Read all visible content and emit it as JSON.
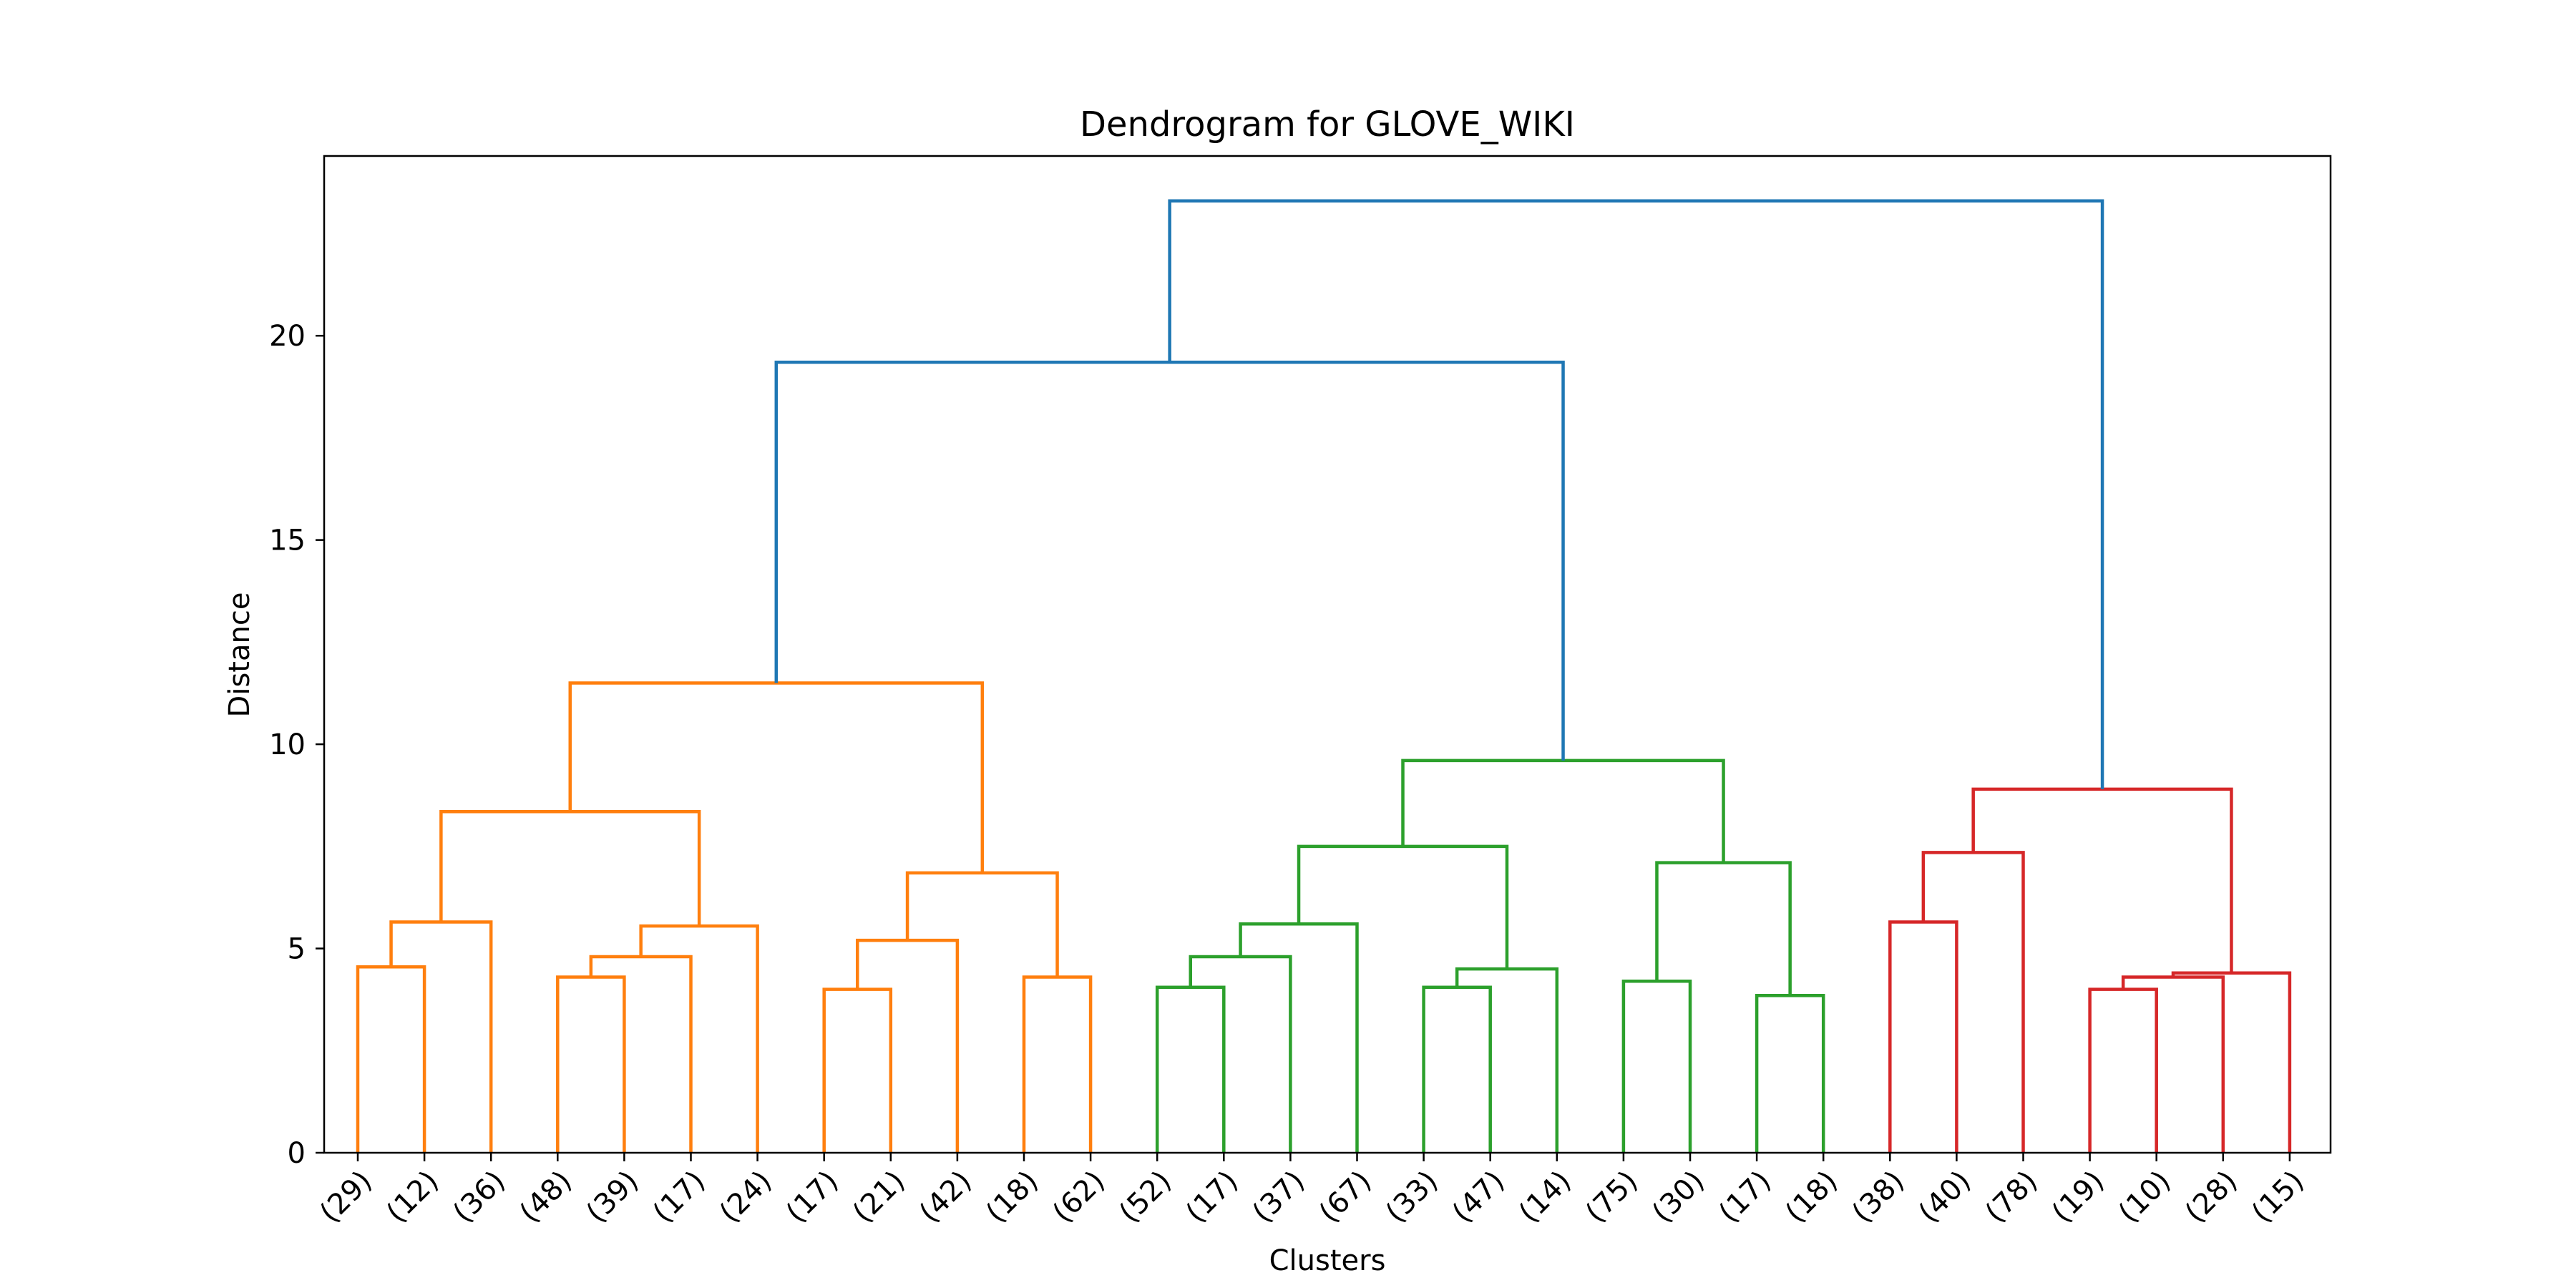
{
  "chart_data": {
    "type": "dendrogram",
    "title": "Dendrogram for GLOVE_WIKI",
    "xlabel": "Clusters",
    "ylabel": "Distance",
    "ylim": [
      0,
      24.4
    ],
    "yticks": [
      0,
      5,
      10,
      15,
      20
    ],
    "grid": false,
    "leaf_labels": [
      "(29)",
      "(12)",
      "(36)",
      "(48)",
      "(39)",
      "(17)",
      "(24)",
      "(17)",
      "(21)",
      "(42)",
      "(18)",
      "(62)",
      "(52)",
      "(17)",
      "(37)",
      "(67)",
      "(33)",
      "(47)",
      "(14)",
      "(75)",
      "(30)",
      "(17)",
      "(18)",
      "(38)",
      "(40)",
      "(78)",
      "(19)",
      "(10)",
      "(28)",
      "(15)"
    ],
    "colors": {
      "cluster_1": "#ff7f0e",
      "cluster_2": "#2ca02c",
      "cluster_3": "#d62728",
      "above_threshold": "#1f77b4"
    },
    "merges": [
      {
        "left": "L0",
        "right": "L1",
        "height": 4.55,
        "color": "cluster_1"
      },
      {
        "left": "M0",
        "right": "L2",
        "height": 5.65,
        "color": "cluster_1"
      },
      {
        "left": "L3",
        "right": "L4",
        "height": 4.3,
        "color": "cluster_1"
      },
      {
        "left": "M2",
        "right": "L5",
        "height": 4.8,
        "color": "cluster_1"
      },
      {
        "left": "M3",
        "right": "L6",
        "height": 5.55,
        "color": "cluster_1"
      },
      {
        "left": "M1",
        "right": "M4",
        "height": 8.35,
        "color": "cluster_1"
      },
      {
        "left": "L7",
        "right": "L8",
        "height": 4.0,
        "color": "cluster_1"
      },
      {
        "left": "M6",
        "right": "L9",
        "height": 5.2,
        "color": "cluster_1"
      },
      {
        "left": "L10",
        "right": "L11",
        "height": 4.3,
        "color": "cluster_1"
      },
      {
        "left": "M7",
        "right": "M8",
        "height": 6.85,
        "color": "cluster_1"
      },
      {
        "left": "M5",
        "right": "M9",
        "height": 11.5,
        "color": "cluster_1"
      },
      {
        "left": "L12",
        "right": "L13",
        "height": 4.05,
        "color": "cluster_2"
      },
      {
        "left": "M11",
        "right": "L14",
        "height": 4.8,
        "color": "cluster_2"
      },
      {
        "left": "M12",
        "right": "L15",
        "height": 5.6,
        "color": "cluster_2"
      },
      {
        "left": "L16",
        "right": "L17",
        "height": 4.05,
        "color": "cluster_2"
      },
      {
        "left": "M14",
        "right": "L18",
        "height": 4.5,
        "color": "cluster_2"
      },
      {
        "left": "M13",
        "right": "M15",
        "height": 7.5,
        "color": "cluster_2"
      },
      {
        "left": "L19",
        "right": "L20",
        "height": 4.2,
        "color": "cluster_2"
      },
      {
        "left": "L21",
        "right": "L22",
        "height": 3.85,
        "color": "cluster_2"
      },
      {
        "left": "M17",
        "right": "M18",
        "height": 7.1,
        "color": "cluster_2"
      },
      {
        "left": "M16",
        "right": "M19",
        "height": 9.6,
        "color": "cluster_2"
      },
      {
        "left": "L23",
        "right": "L24",
        "height": 5.65,
        "color": "cluster_3"
      },
      {
        "left": "M21",
        "right": "L25",
        "height": 7.35,
        "color": "cluster_3"
      },
      {
        "left": "L26",
        "right": "L27",
        "height": 4.0,
        "color": "cluster_3"
      },
      {
        "left": "M23",
        "right": "L28",
        "height": 4.3,
        "color": "cluster_3"
      },
      {
        "left": "M24",
        "right": "L29",
        "height": 4.4,
        "color": "cluster_3"
      },
      {
        "left": "M22",
        "right": "M25",
        "height": 8.9,
        "color": "cluster_3"
      },
      {
        "left": "M10",
        "right": "M20",
        "height": 19.35,
        "color": "above_threshold"
      },
      {
        "left": "M27",
        "right": "M26",
        "height": 23.3,
        "color": "above_threshold"
      }
    ]
  }
}
